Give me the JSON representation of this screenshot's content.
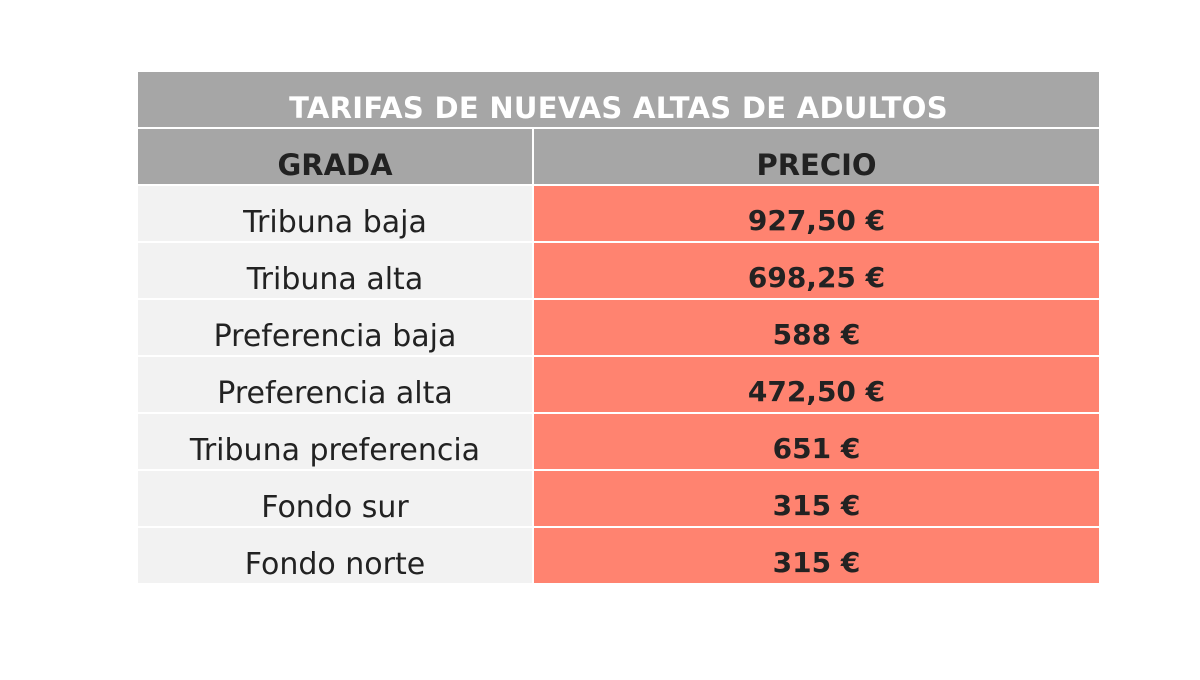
{
  "title": "TARIFAS DE NUEVAS ALTAS DE ADULTOS",
  "headers": {
    "grada": "GRADA",
    "precio": "PRECIO"
  },
  "rows": [
    {
      "grada": "Tribuna baja",
      "precio": "927,50 €"
    },
    {
      "grada": "Tribuna alta",
      "precio": "698,25 €"
    },
    {
      "grada": "Preferencia baja",
      "precio": "588 €"
    },
    {
      "grada": "Preferencia alta",
      "precio": "472,50 €"
    },
    {
      "grada": "Tribuna preferencia",
      "precio": "651 €"
    },
    {
      "grada": "Fondo sur",
      "precio": "315 €"
    },
    {
      "grada": "Fondo norte",
      "precio": "315 €"
    }
  ],
  "colors": {
    "header_bg": "#a6a6a6",
    "row_bg": "#f2f2f2",
    "price_bg": "#ff8370"
  }
}
